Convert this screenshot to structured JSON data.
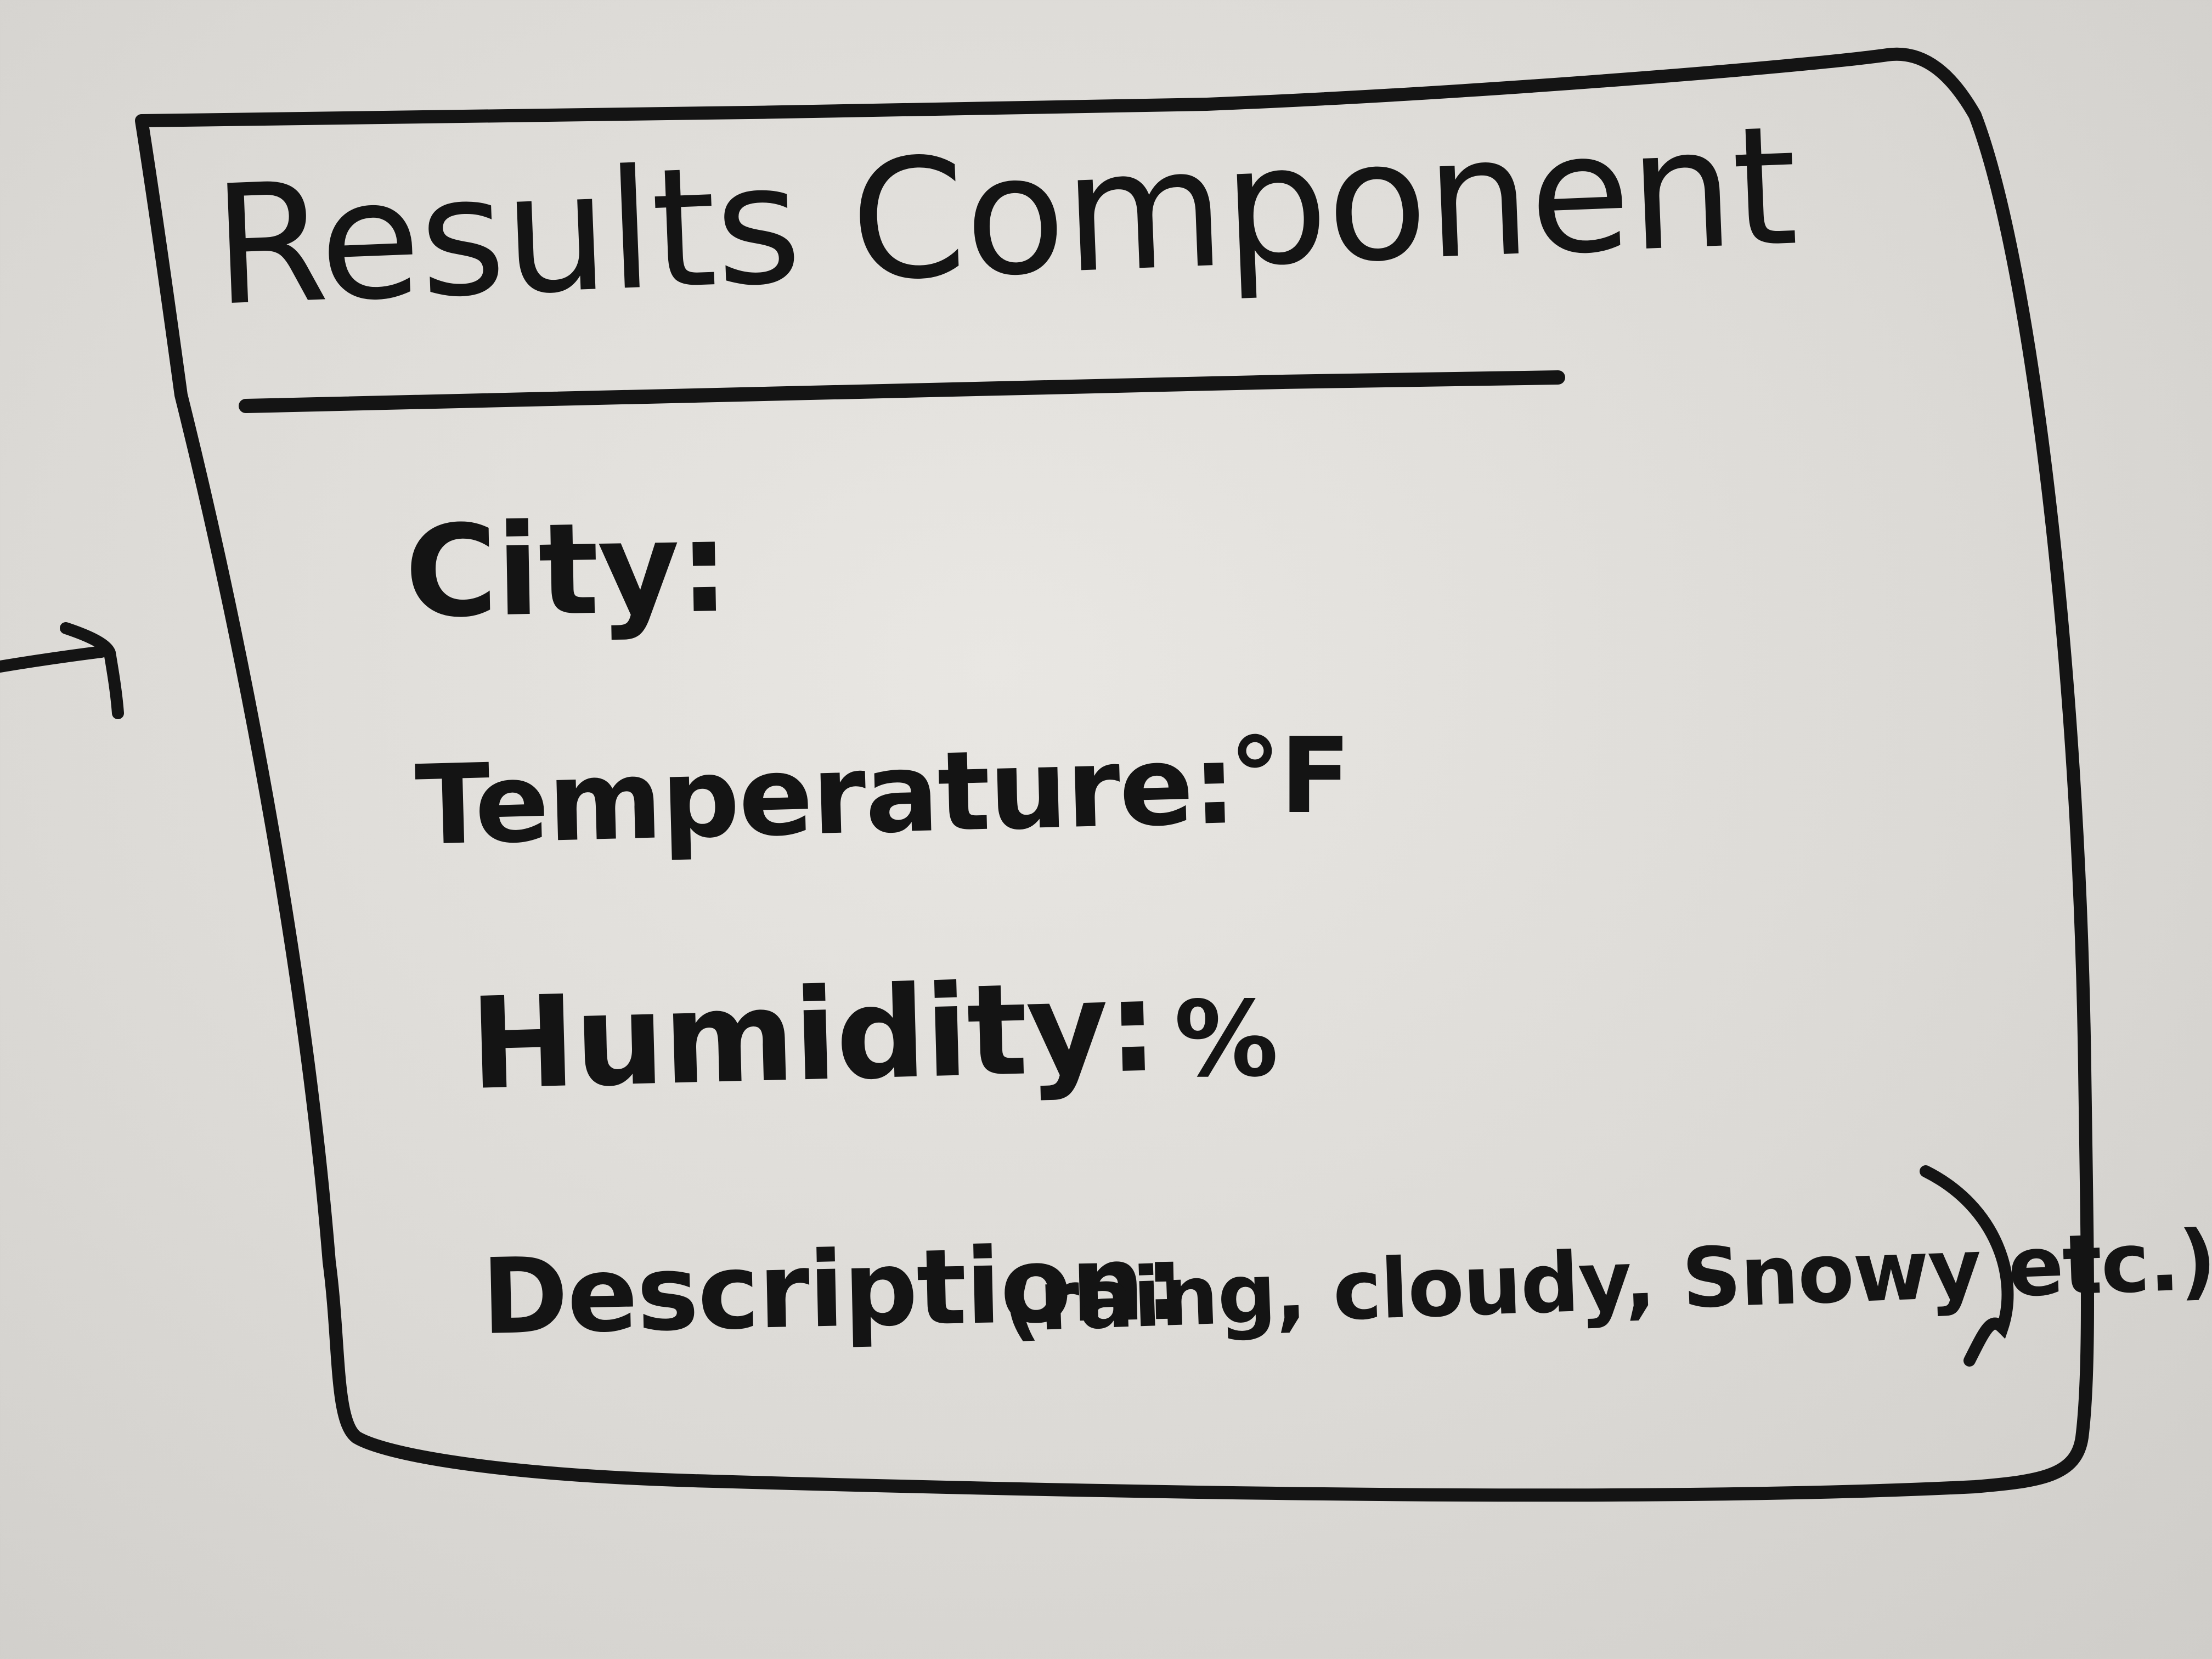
{
  "title": "Results Component",
  "fields": {
    "city": {
      "label": "City:"
    },
    "temperature": {
      "label": "Temperature:",
      "unit": "°F"
    },
    "humidity": {
      "label": "Humidity:",
      "unit": "%"
    },
    "description": {
      "label": "Description:",
      "examples": "(raing, cloudy, Snowy etc.)"
    }
  },
  "colors": {
    "ink": "#141414",
    "board": "#e2e0dc"
  }
}
